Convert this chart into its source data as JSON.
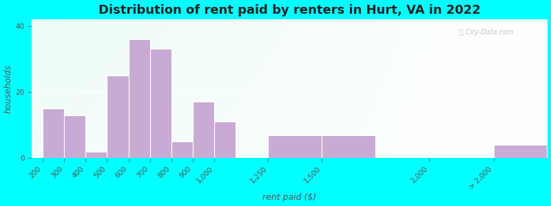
{
  "title": "Distribution of rent paid by renters in Hurt, VA in 2022",
  "xlabel": "rent paid ($)",
  "ylabel": "households",
  "bar_color": "#c9aad4",
  "bar_edgecolor": "#ffffff",
  "bg_outer": "#00ffff",
  "categories": [
    "200",
    "300",
    "400",
    "500",
    "600",
    "700",
    "800",
    "900",
    "1,000",
    "1,250",
    "1,500",
    "2,000",
    "> 2,000"
  ],
  "positions": [
    200,
    300,
    400,
    500,
    600,
    700,
    800,
    900,
    1000,
    1250,
    1500,
    2000,
    2300
  ],
  "widths": [
    100,
    100,
    100,
    100,
    100,
    100,
    100,
    100,
    100,
    250,
    250,
    250,
    250
  ],
  "values": [
    15,
    13,
    2,
    25,
    36,
    33,
    5,
    17,
    11,
    7,
    7,
    0,
    4
  ],
  "xlim": [
    150,
    2550
  ],
  "ylim": [
    0,
    42
  ],
  "yticks": [
    0,
    20,
    40
  ],
  "title_fontsize": 13,
  "axis_label_fontsize": 9,
  "tick_fontsize": 7.5
}
